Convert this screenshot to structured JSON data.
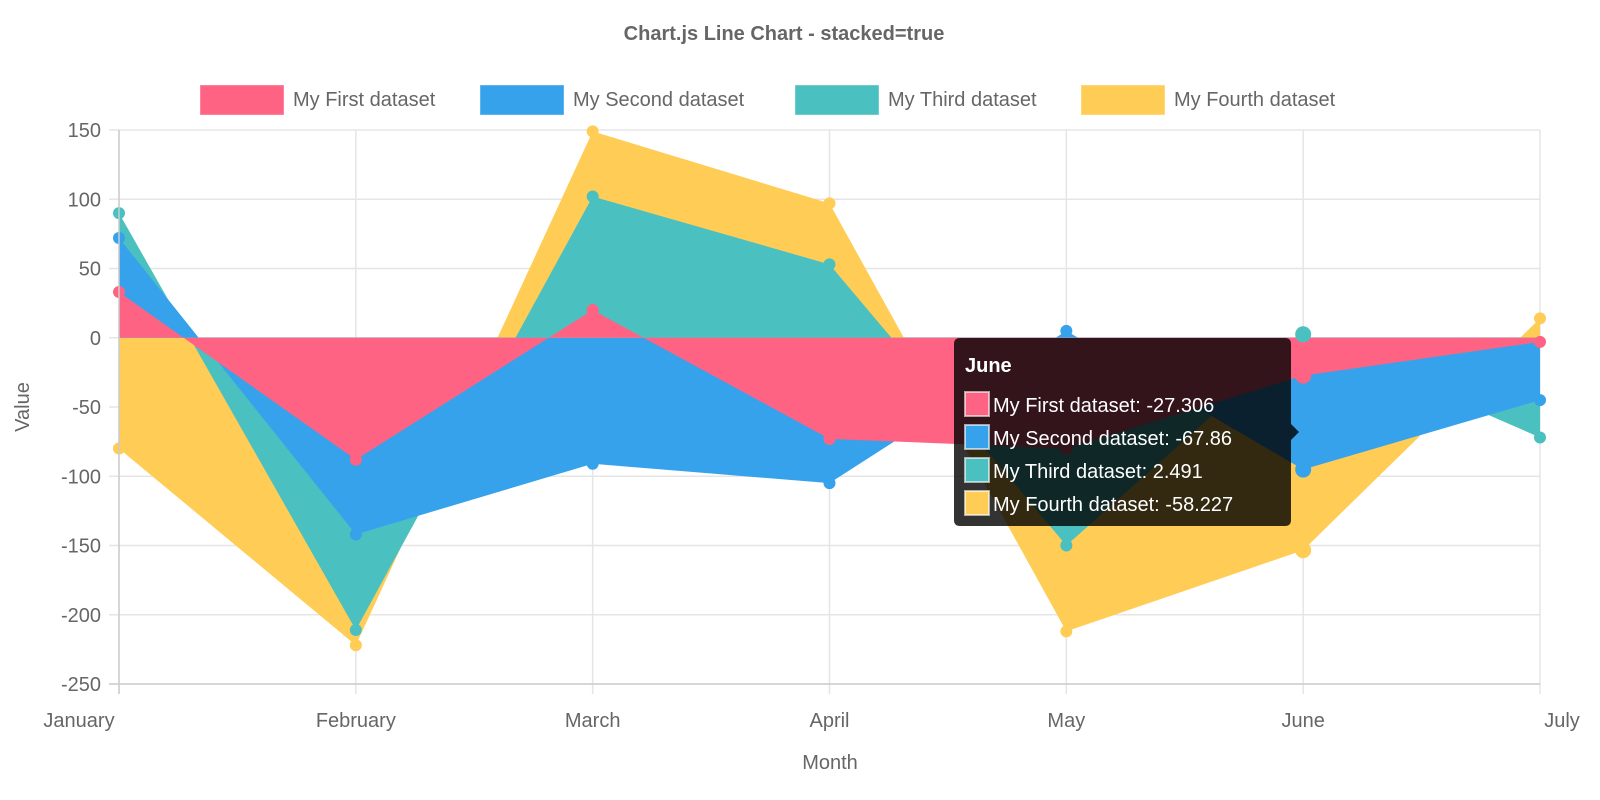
{
  "chart_data": {
    "type": "line",
    "stacked": true,
    "filled": true,
    "title": "Chart.js Line Chart - stacked=true",
    "xlabel": "Month",
    "ylabel": "Value",
    "categories": [
      "January",
      "February",
      "March",
      "April",
      "May",
      "June",
      "July"
    ],
    "ylim": [
      -250,
      150
    ],
    "yticks": [
      150,
      100,
      50,
      0,
      -50,
      -100,
      -150,
      -200,
      -250
    ],
    "grid": true,
    "legend_position": "top",
    "series": [
      {
        "name": "My First dataset",
        "color": "#ff6384",
        "values": [
          33,
          -88,
          20,
          -73,
          -80,
          -27.306,
          -3
        ]
      },
      {
        "name": "My Second dataset",
        "color": "#36a2eb",
        "values": [
          39,
          -54,
          -91,
          -32,
          5,
          -67.86,
          -42
        ]
      },
      {
        "name": "My Third dataset",
        "color": "#4bc0c0",
        "values": [
          18,
          -69,
          82,
          53,
          -70,
          2.491,
          -27
        ]
      },
      {
        "name": "My Fourth dataset",
        "color": "#ffcd56",
        "values": [
          -80,
          -11,
          47,
          44,
          -62,
          -58.227,
          14
        ]
      }
    ],
    "tooltip": {
      "title": "June",
      "index": 5,
      "lines": [
        "My First dataset: -27.306",
        "My Second dataset: -67.86",
        "My Third dataset: 2.491",
        "My Fourth dataset: -58.227"
      ]
    }
  }
}
